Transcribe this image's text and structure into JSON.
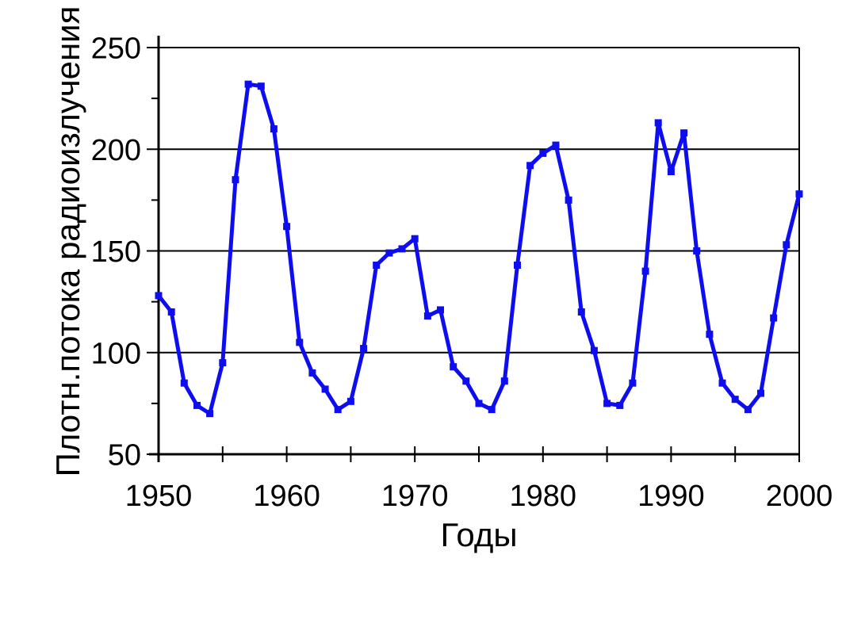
{
  "chart_data": {
    "type": "line",
    "title": "",
    "xlabel": "Годы",
    "ylabel": "Плотн.потока радиоизлучения",
    "xlim": [
      1950,
      2000
    ],
    "ylim": [
      50,
      250
    ],
    "xticks_major": [
      1950,
      1960,
      1970,
      1980,
      1990,
      2000
    ],
    "xticks_minor": [
      1955,
      1965,
      1975,
      1985,
      1995
    ],
    "yticks_major": [
      50,
      100,
      150,
      200,
      250
    ],
    "yticks_minor": [
      75,
      125,
      175,
      225
    ],
    "grid": "horizontal-major",
    "legend": "none",
    "colors": {
      "line": "#0d0df0",
      "axis": "#000000",
      "background": "#ffffff"
    },
    "series": [
      {
        "name": "Плотн.потока радиоизлучения",
        "marker": "square",
        "x": [
          1950,
          1951,
          1952,
          1953,
          1954,
          1955,
          1956,
          1957,
          1958,
          1959,
          1960,
          1961,
          1962,
          1963,
          1964,
          1965,
          1966,
          1967,
          1968,
          1969,
          1970,
          1971,
          1972,
          1973,
          1974,
          1975,
          1976,
          1977,
          1978,
          1979,
          1980,
          1981,
          1982,
          1983,
          1984,
          1985,
          1986,
          1987,
          1988,
          1989,
          1990,
          1991,
          1992,
          1993,
          1994,
          1995,
          1996,
          1997,
          1998,
          1999,
          2000
        ],
        "values": [
          128,
          120,
          85,
          74,
          70,
          95,
          185,
          232,
          231,
          210,
          162,
          105,
          90,
          82,
          72,
          76,
          102,
          143,
          149,
          151,
          156,
          118,
          121,
          93,
          86,
          75,
          72,
          86,
          143,
          192,
          198,
          202,
          175,
          120,
          101,
          75,
          74,
          85,
          140,
          213,
          189,
          208,
          150,
          109,
          85,
          77,
          72,
          80,
          117,
          153,
          178
        ]
      }
    ]
  }
}
